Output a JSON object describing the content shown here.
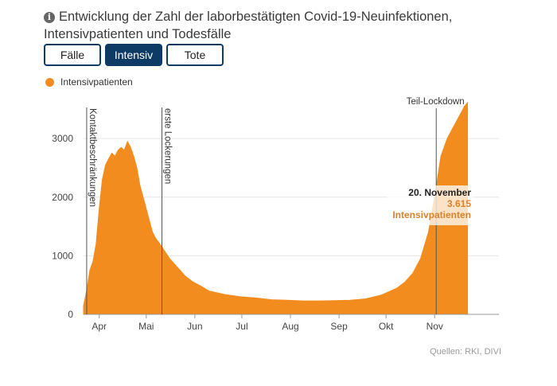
{
  "header": {
    "title": "Entwicklung der Zahl der laborbestätigten Covid-19-Neuinfektionen, Intensivpatienten und Todesfälle",
    "info_icon": "info-icon"
  },
  "tabs": [
    {
      "label": "Fälle",
      "active": false
    },
    {
      "label": "Intensiv",
      "active": true
    },
    {
      "label": "Tote",
      "active": false
    }
  ],
  "colors": {
    "accent": "#f28c1e",
    "tab_dark": "#0e3a66",
    "tooltip_date": "#222222",
    "tooltip_value": "#d9822b"
  },
  "chart_data": {
    "type": "area",
    "legend": [
      "Intensivpatienten"
    ],
    "ylim": [
      0,
      3600
    ],
    "yticks": [
      0,
      1000,
      2000,
      3000
    ],
    "xlim_days": [
      0,
      265
    ],
    "month_ticks": [
      {
        "label": "Apr",
        "day": 10
      },
      {
        "label": "Mai",
        "day": 40
      },
      {
        "label": "Jun",
        "day": 71
      },
      {
        "label": "Jul",
        "day": 101
      },
      {
        "label": "Aug",
        "day": 132
      },
      {
        "label": "Sep",
        "day": 163
      },
      {
        "label": "Okt",
        "day": 193
      },
      {
        "label": "Nov",
        "day": 224
      }
    ],
    "series": [
      {
        "name": "Intensivpatienten",
        "points": [
          [
            0,
            150
          ],
          [
            2,
            400
          ],
          [
            4,
            750
          ],
          [
            6,
            900
          ],
          [
            8,
            1200
          ],
          [
            10,
            1800
          ],
          [
            12,
            2300
          ],
          [
            14,
            2550
          ],
          [
            16,
            2650
          ],
          [
            18,
            2750
          ],
          [
            20,
            2700
          ],
          [
            22,
            2800
          ],
          [
            24,
            2850
          ],
          [
            26,
            2800
          ],
          [
            28,
            2950
          ],
          [
            30,
            2850
          ],
          [
            32,
            2700
          ],
          [
            34,
            2500
          ],
          [
            36,
            2200
          ],
          [
            38,
            2000
          ],
          [
            40,
            1800
          ],
          [
            42,
            1600
          ],
          [
            44,
            1400
          ],
          [
            46,
            1300
          ],
          [
            50,
            1150
          ],
          [
            55,
            950
          ],
          [
            60,
            800
          ],
          [
            65,
            650
          ],
          [
            70,
            550
          ],
          [
            75,
            480
          ],
          [
            80,
            400
          ],
          [
            90,
            340
          ],
          [
            100,
            300
          ],
          [
            110,
            280
          ],
          [
            120,
            250
          ],
          [
            130,
            240
          ],
          [
            140,
            230
          ],
          [
            150,
            230
          ],
          [
            160,
            235
          ],
          [
            170,
            240
          ],
          [
            180,
            265
          ],
          [
            190,
            330
          ],
          [
            200,
            450
          ],
          [
            205,
            550
          ],
          [
            210,
            700
          ],
          [
            215,
            950
          ],
          [
            220,
            1400
          ],
          [
            224,
            2000
          ],
          [
            228,
            2700
          ],
          [
            232,
            3000
          ],
          [
            236,
            3200
          ],
          [
            240,
            3400
          ],
          [
            243,
            3550
          ],
          [
            245,
            3615
          ]
        ]
      }
    ],
    "annotations": [
      {
        "label": "Kontaktbeschränkungen",
        "day": 2
      },
      {
        "label": "erste Lockerungen",
        "day": 50
      },
      {
        "label": "Teil-Lockdown",
        "day": 225
      }
    ],
    "tooltip": {
      "date": "20. November",
      "value": "3.615",
      "label": "Intensivpatienten"
    }
  },
  "source": "Quellen: RKI, DIVI"
}
